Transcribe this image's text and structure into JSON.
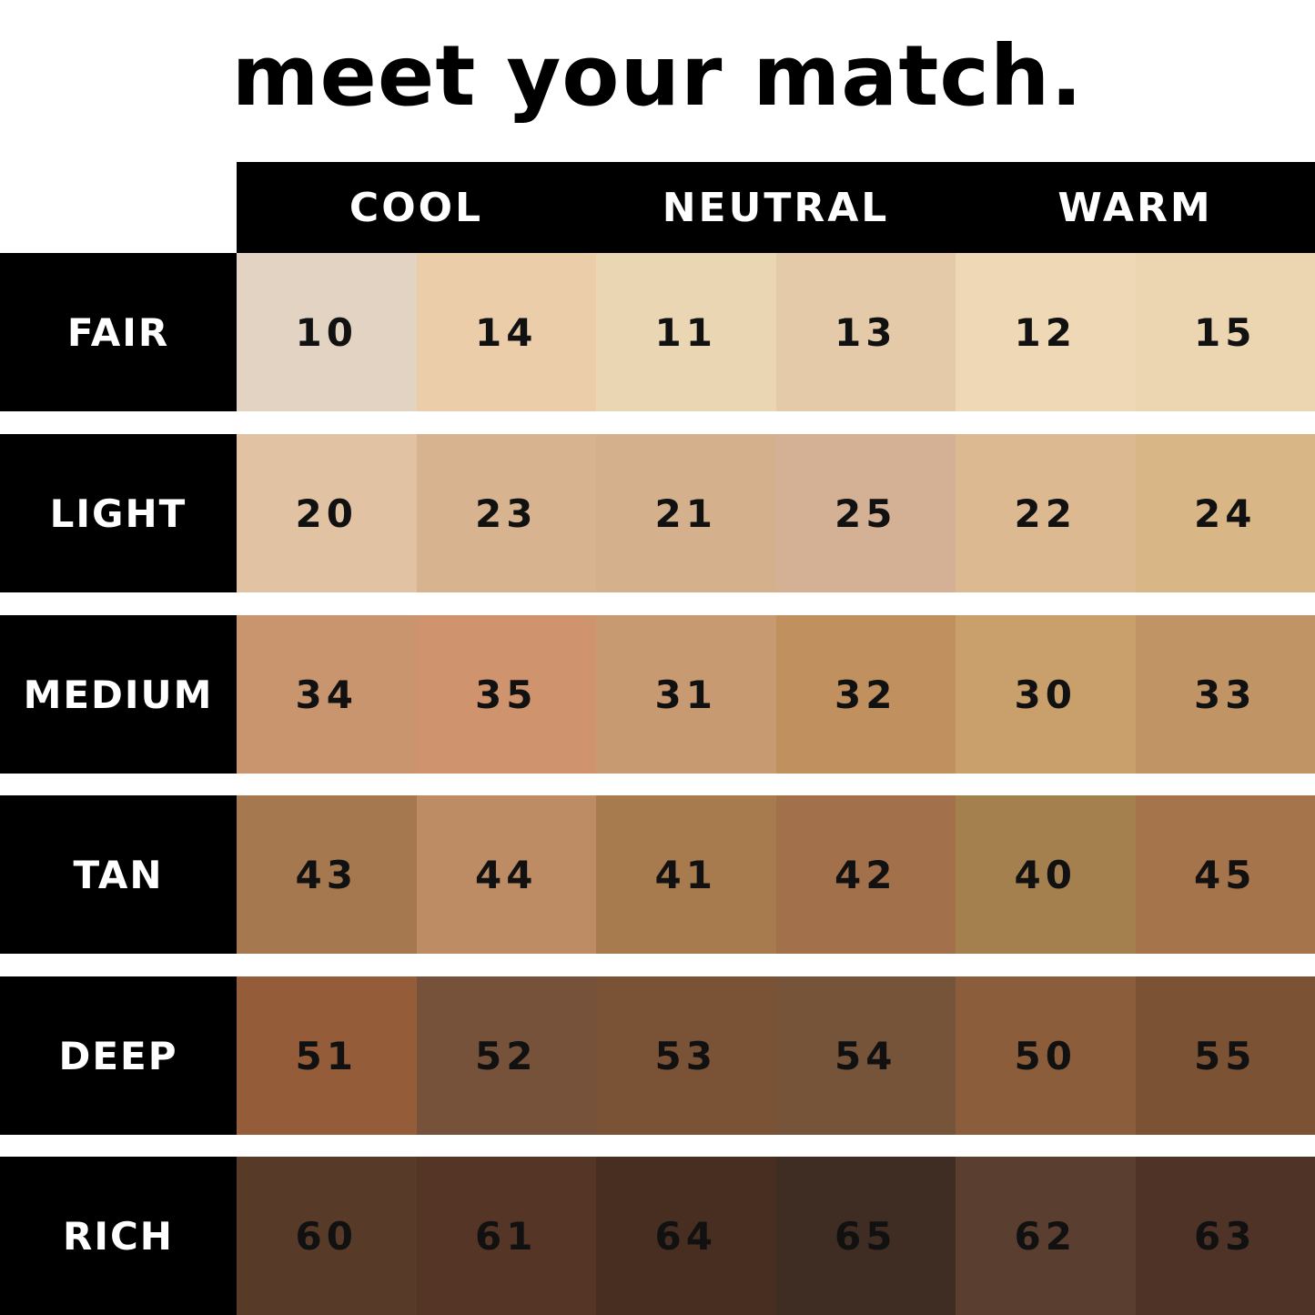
{
  "title": "meet your match.",
  "columns": [
    "COOL",
    "NEUTRAL",
    "WARM"
  ],
  "rows": [
    {
      "label": "FAIR",
      "shades": [
        "10",
        "14",
        "11",
        "13",
        "12",
        "15"
      ],
      "colors": [
        "#e3d3c2",
        "#ebcdaa",
        "#ebd6b4",
        "#e5caaa",
        "#efd8b5",
        "#ecd6b1"
      ]
    },
    {
      "label": "LIGHT",
      "shades": [
        "20",
        "23",
        "21",
        "25",
        "22",
        "24"
      ],
      "colors": [
        "#e1c3a3",
        "#d8b38f",
        "#d5b08d",
        "#d4b194",
        "#ddb991",
        "#d8b686"
      ]
    },
    {
      "label": "MEDIUM",
      "shades": [
        "34",
        "35",
        "31",
        "32",
        "30",
        "33"
      ],
      "colors": [
        "#c8956f",
        "#cf946e",
        "#c89a71",
        "#c0905f",
        "#c9a06b",
        "#c19465"
      ]
    },
    {
      "label": "TAN",
      "shades": [
        "43",
        "44",
        "41",
        "42",
        "40",
        "45"
      ],
      "colors": [
        "#a5784f",
        "#bd8c64",
        "#a87b4e",
        "#a3704c",
        "#a4804f",
        "#a5744a"
      ]
    },
    {
      "label": "DEEP",
      "shades": [
        "51",
        "52",
        "53",
        "54",
        "50",
        "55"
      ],
      "colors": [
        "#955c3a",
        "#76523a",
        "#7a5236",
        "#76543a",
        "#8c5d3a",
        "#7c5235"
      ]
    },
    {
      "label": "RICH",
      "shades": [
        "60",
        "61",
        "64",
        "65",
        "62",
        "63"
      ],
      "colors": [
        "#583a28",
        "#543526",
        "#472e20",
        "#3f2c22",
        "#5a3e2f",
        "#4e3326"
      ]
    }
  ]
}
